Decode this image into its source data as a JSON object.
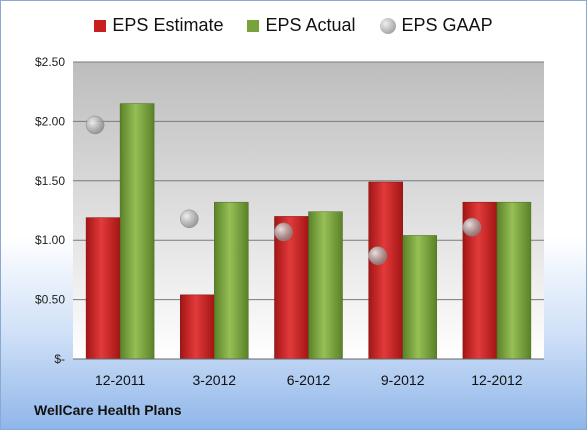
{
  "chart_data": {
    "type": "bar",
    "categories": [
      "12-2011",
      "3-2012",
      "6-2012",
      "9-2012",
      "12-2012"
    ],
    "series": [
      {
        "name": "EPS Estimate",
        "values": [
          1.19,
          0.54,
          1.2,
          1.49,
          1.32
        ]
      },
      {
        "name": "EPS Actual",
        "values": [
          2.15,
          1.32,
          1.24,
          1.04,
          1.32
        ]
      },
      {
        "name": "EPS GAAP",
        "values": [
          1.97,
          1.18,
          1.07,
          0.87,
          1.11
        ]
      }
    ],
    "y_ticks": [
      0,
      0.5,
      1.0,
      1.5,
      2.0,
      2.5
    ],
    "y_tick_labels": [
      "$-",
      "$0.50",
      "$1.00",
      "$1.50",
      "$2.00",
      "$2.50"
    ],
    "ylim": [
      0,
      2.5
    ],
    "legend_position": "top",
    "grid": true,
    "colors": {
      "estimate": "#c81e1e",
      "actual": "#78a23c",
      "gaap": "#9a9a9a",
      "plot_top": "#bdbdbd",
      "plot_bottom": "#ffffff"
    }
  },
  "footer": {
    "company": "WellCare Health Plans"
  }
}
